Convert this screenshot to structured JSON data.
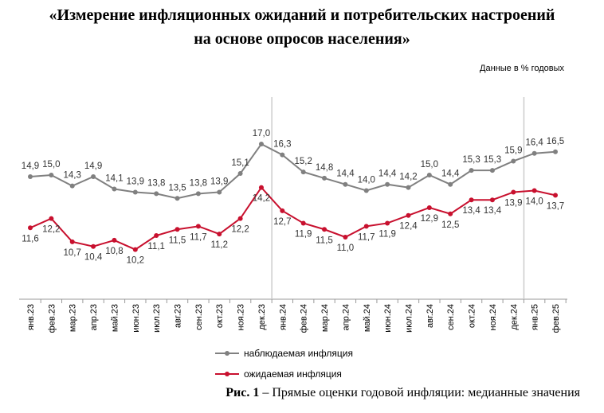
{
  "title_line1": "«Измерение инфляционных ожиданий и потребительских настроений",
  "title_line2": "на основе опросов населения»",
  "units_note": "Данные в % годовых",
  "caption_bold": "Рис. 1",
  "caption_text": " – Прямые оценки годовой инфляции: медианные значения",
  "chart_data": {
    "type": "line",
    "categories": [
      "янв.23",
      "фев.23",
      "мар.23",
      "апр.23",
      "май.23",
      "июн.23",
      "июл.23",
      "авг.23",
      "сен.23",
      "окт.23",
      "ноя.23",
      "дек.23",
      "янв.24",
      "фев.24",
      "мар.24",
      "апр.24",
      "май.24",
      "июн.24",
      "июл.24",
      "авг.24",
      "сен.24",
      "окт.24",
      "ноя.24",
      "дек.24",
      "янв.25",
      "фев.25"
    ],
    "series": [
      {
        "name": "наблюдаемая инфляция",
        "color": "#808080",
        "values": [
          14.9,
          15.0,
          14.3,
          14.9,
          14.1,
          13.9,
          13.8,
          13.5,
          13.8,
          13.9,
          15.1,
          17.0,
          16.3,
          15.2,
          14.8,
          14.4,
          14.0,
          14.4,
          14.2,
          15.0,
          14.4,
          15.3,
          15.3,
          15.9,
          16.4,
          16.5
        ]
      },
      {
        "name": "ожидаемая инфляция",
        "color": "#c8102e",
        "values": [
          11.6,
          12.2,
          10.7,
          10.4,
          10.8,
          10.2,
          11.1,
          11.5,
          11.7,
          11.2,
          12.2,
          14.2,
          12.7,
          11.9,
          11.5,
          11.0,
          11.7,
          11.9,
          12.4,
          12.9,
          12.5,
          13.4,
          13.4,
          13.9,
          14.0,
          13.7
        ]
      }
    ],
    "ylim": [
      7,
      17
    ],
    "grid": false,
    "year_separators_after": [
      "дек.23",
      "дек.24"
    ],
    "legend_position": "bottom-left"
  }
}
